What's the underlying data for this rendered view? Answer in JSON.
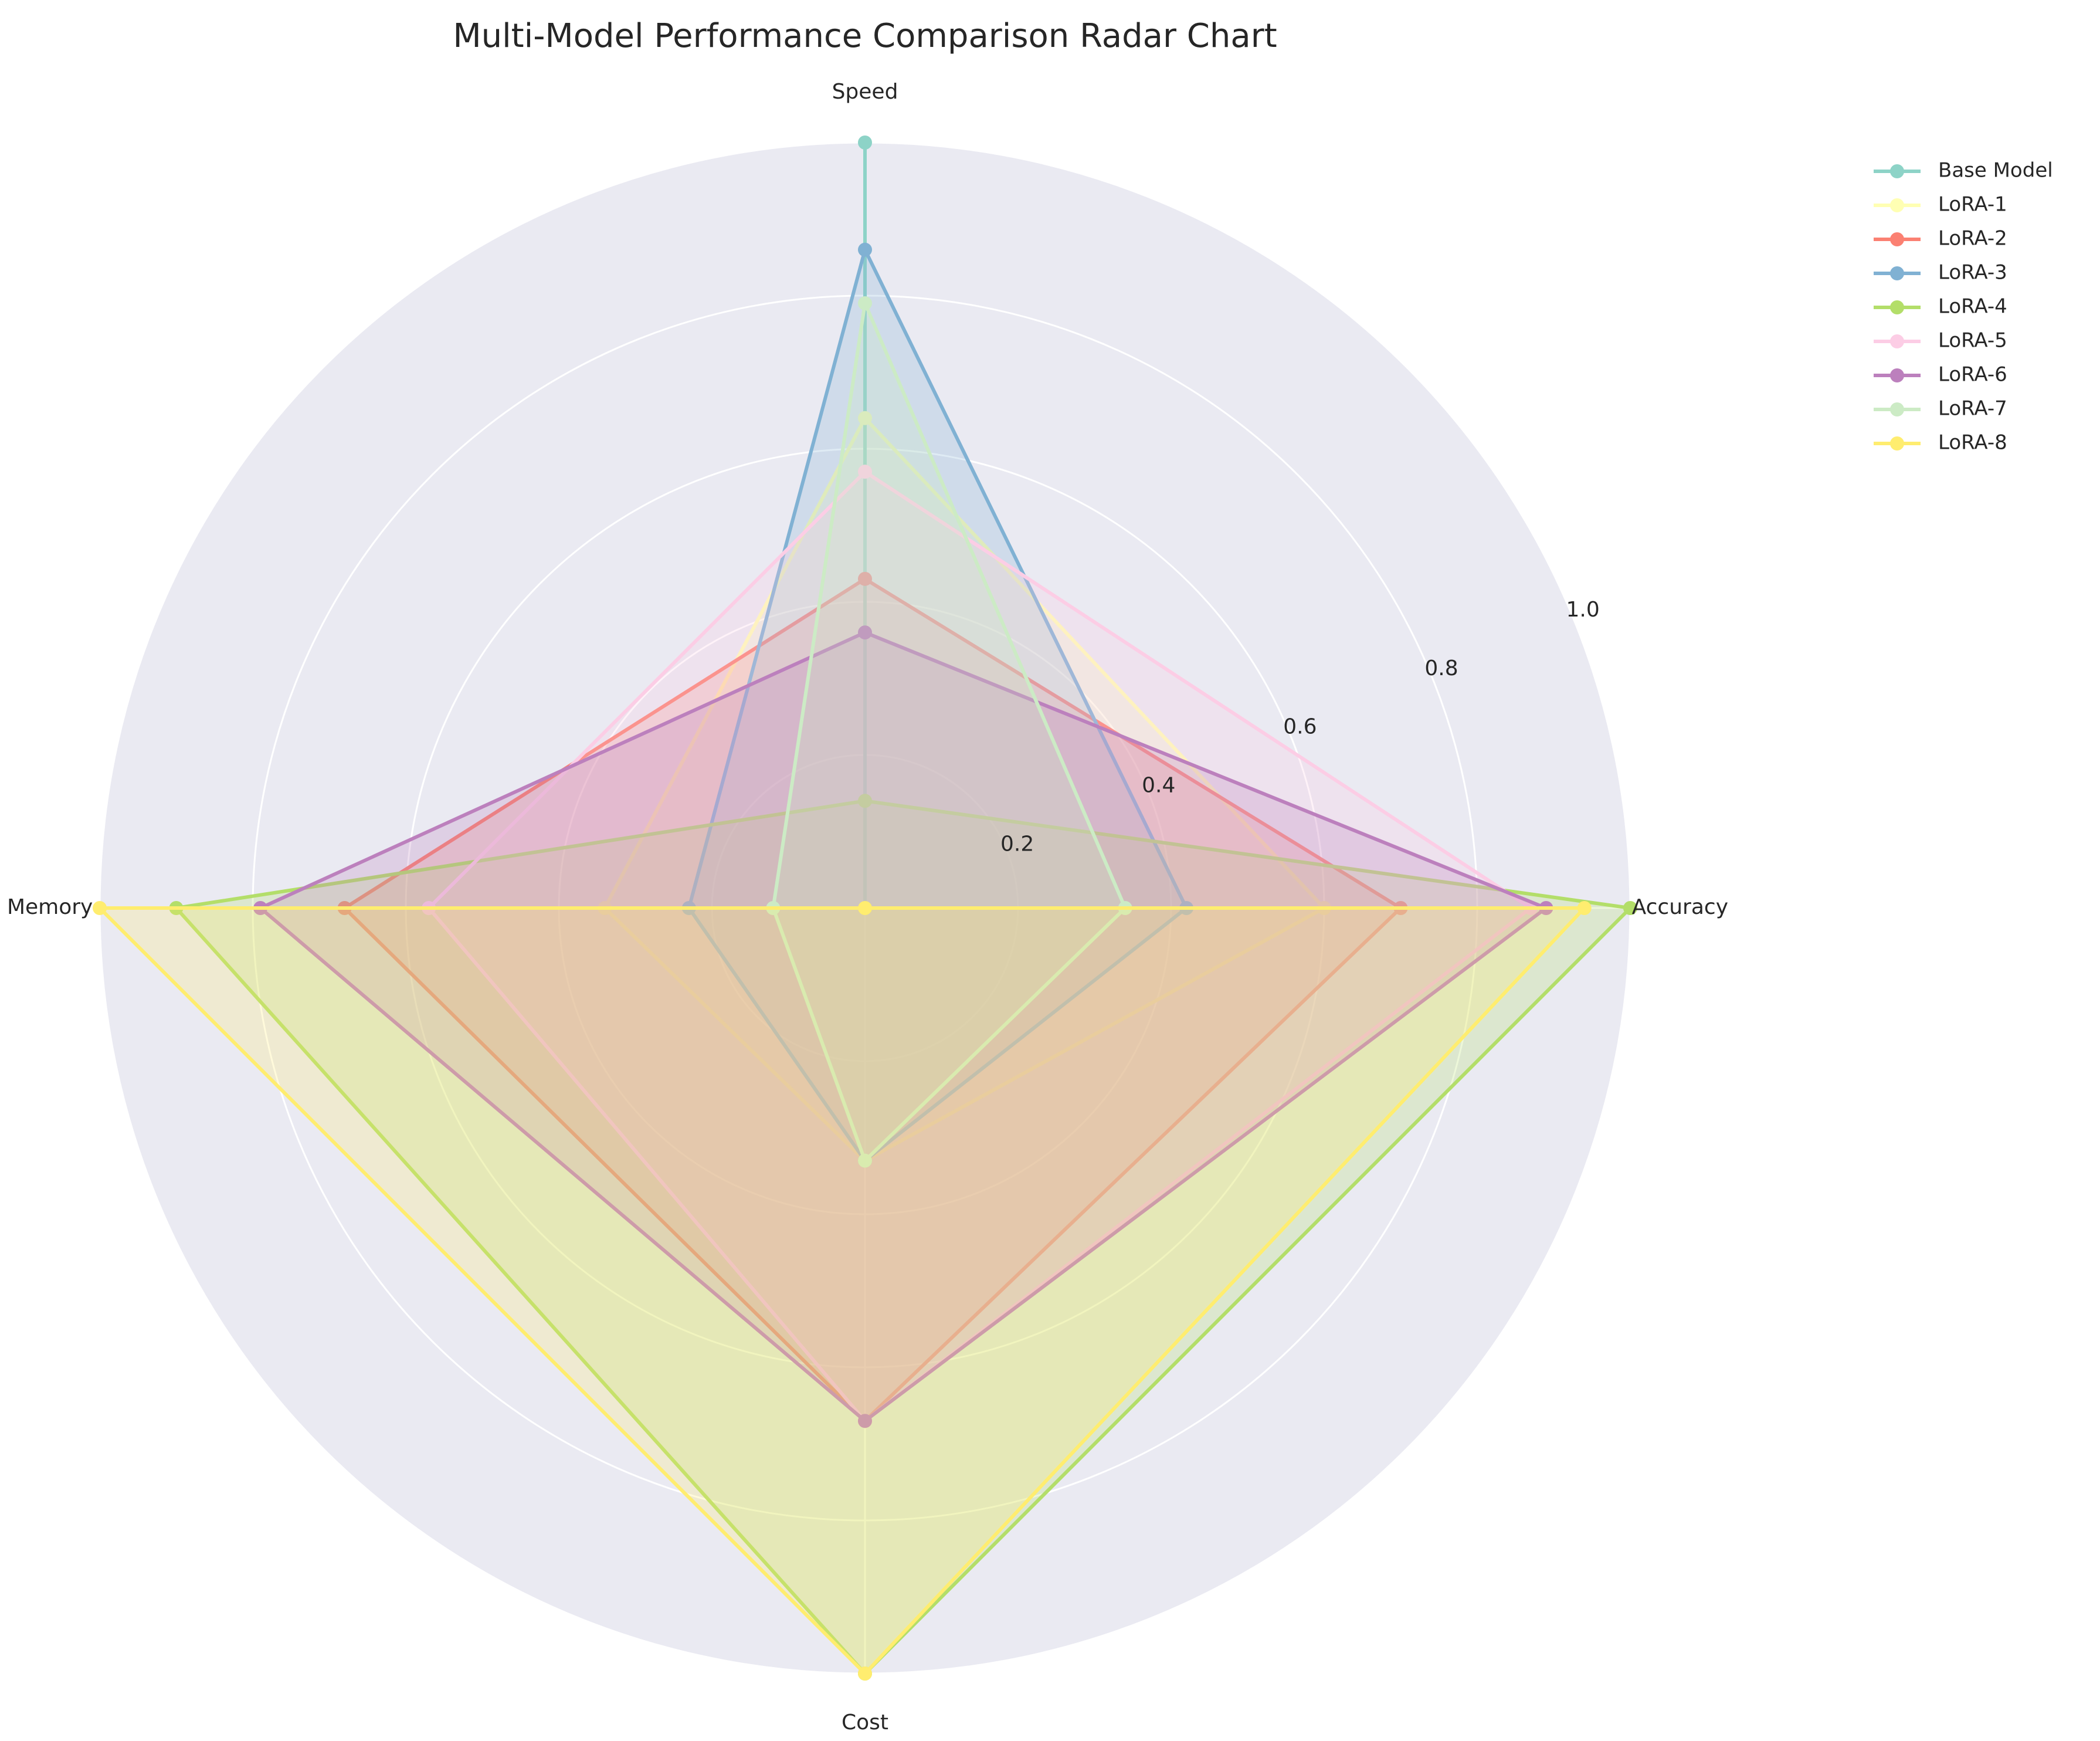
{
  "chart_data": {
    "type": "radar",
    "title": "Multi-Model Performance Comparison Radar Chart",
    "axes": [
      "Accuracy",
      "Speed",
      "Memory",
      "Cost"
    ],
    "rlim": [
      0,
      1.0
    ],
    "rticks": [
      "0.2",
      "0.4",
      "0.6",
      "0.8",
      "1.0"
    ],
    "rtick_values": [
      0.2,
      0.4,
      0.6,
      0.8,
      1.0
    ],
    "grid": true,
    "background_color": "#EAEAF2",
    "legend_position": "outside-right",
    "series": [
      {
        "name": "Base Model",
        "color": "#8DD3C7",
        "values": [
          0.0,
          1.0,
          0.0,
          0.0
        ]
      },
      {
        "name": "LoRA-1",
        "color": "#FFFFB3",
        "values": [
          0.6,
          0.64,
          0.34,
          0.33
        ]
      },
      {
        "name": "LoRA-2",
        "color": "#FB8072",
        "values": [
          0.7,
          0.43,
          0.68,
          0.67
        ]
      },
      {
        "name": "LoRA-3",
        "color": "#80B1D3",
        "values": [
          0.42,
          0.86,
          0.23,
          0.33
        ]
      },
      {
        "name": "LoRA-4",
        "color": "#B3DE69",
        "values": [
          1.0,
          0.14,
          0.9,
          1.0
        ]
      },
      {
        "name": "LoRA-5",
        "color": "#FCCDE5",
        "values": [
          0.87,
          0.57,
          0.57,
          0.67
        ]
      },
      {
        "name": "LoRA-6",
        "color": "#BC80BD",
        "values": [
          0.89,
          0.36,
          0.79,
          0.67
        ]
      },
      {
        "name": "LoRA-7",
        "color": "#CCEBC5",
        "values": [
          0.34,
          0.79,
          0.12,
          0.33
        ]
      },
      {
        "name": "LoRA-8",
        "color": "#FFED6F",
        "values": [
          0.94,
          0.0,
          1.0,
          1.0
        ]
      }
    ]
  }
}
